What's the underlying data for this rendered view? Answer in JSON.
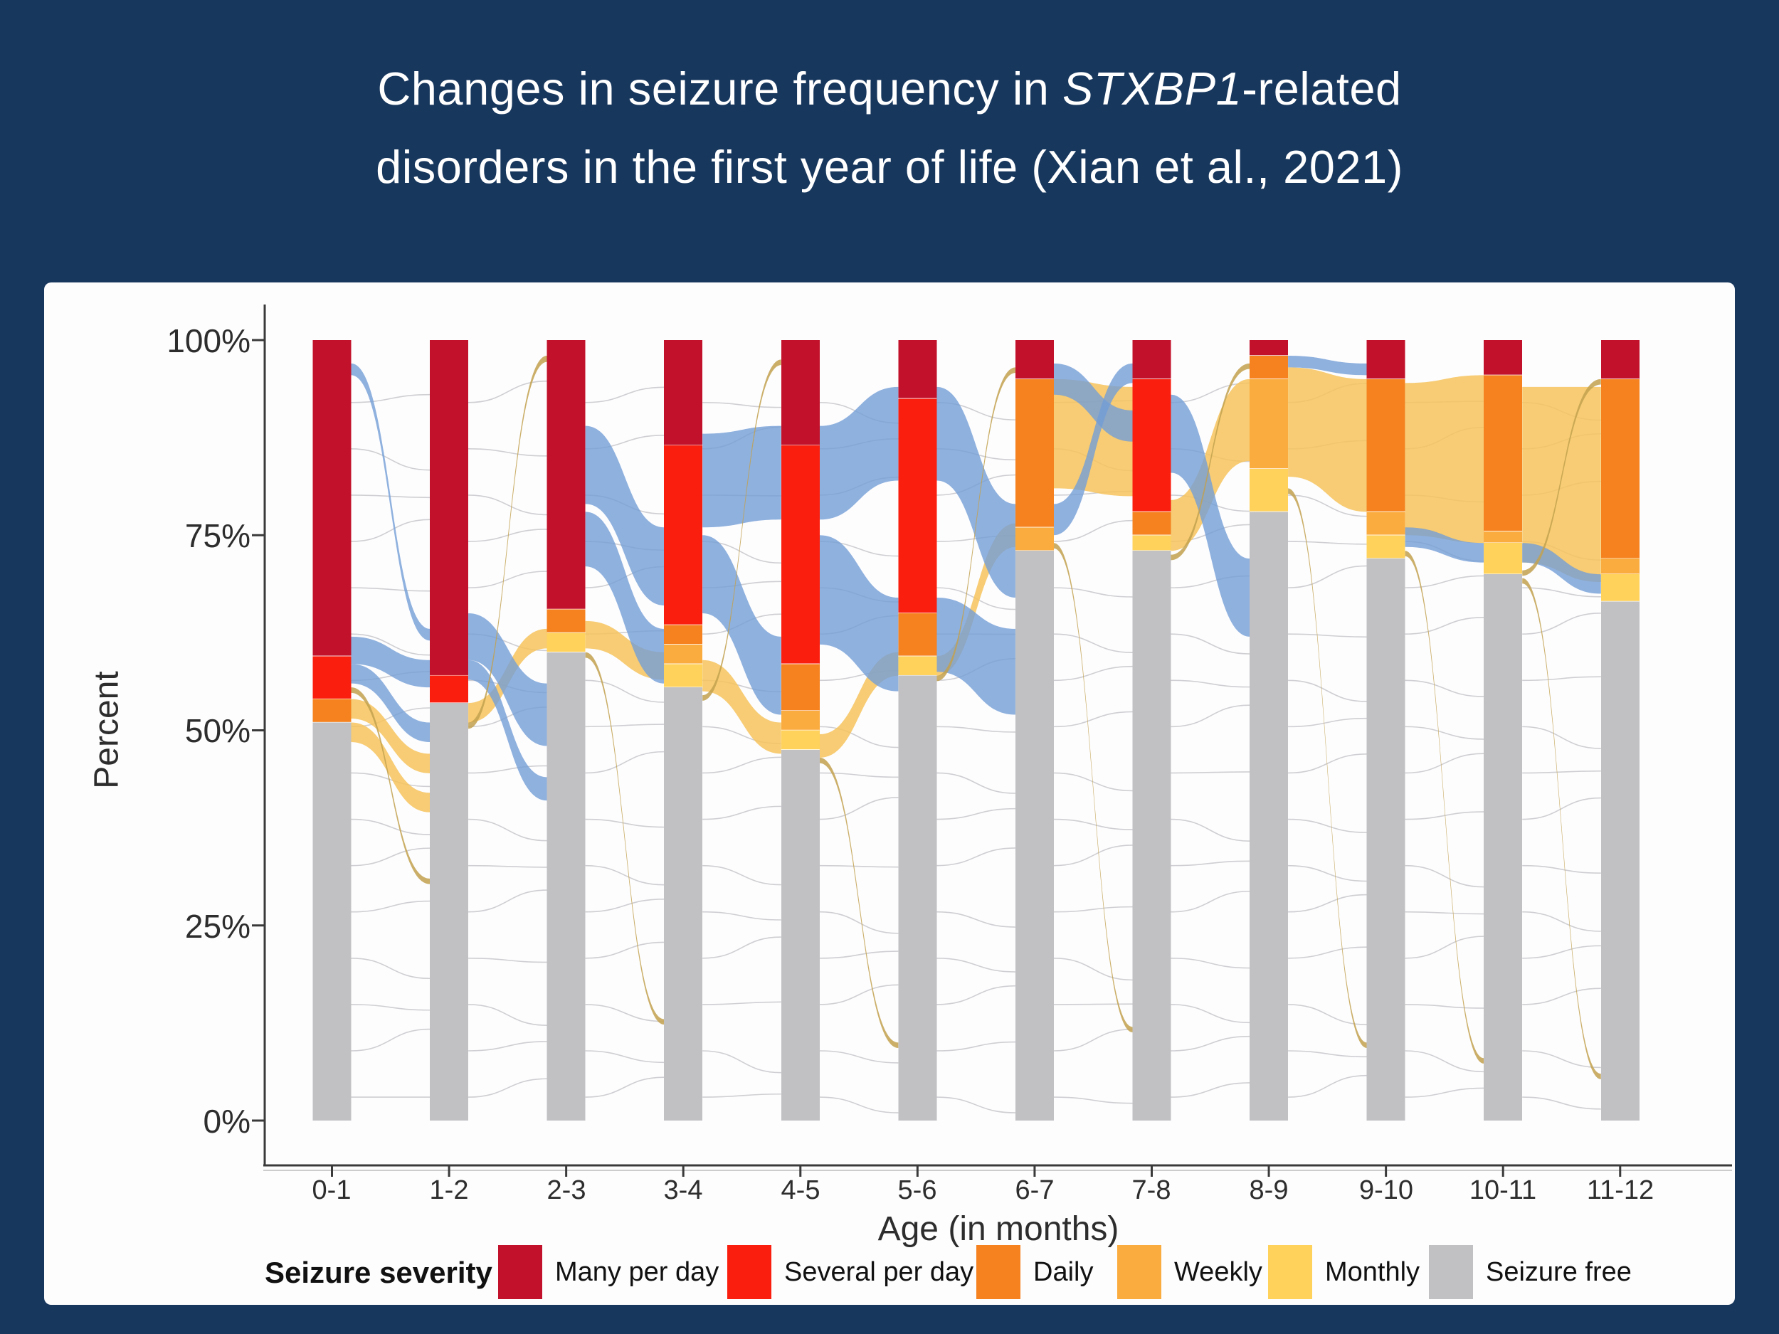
{
  "title": {
    "line1_pre": "Changes in seizure frequency in ",
    "line1_italic": "STXBP1",
    "line1_post": "-related",
    "line2": "disorders in the first year of life (Xian et al., 2021)"
  },
  "colors": {
    "many": "#C2122B",
    "several": "#FA1E0F",
    "daily": "#F5821F",
    "weekly": "#FBAC3E",
    "monthly": "#FFD25C",
    "free": "#C1C1C4",
    "flow_blue": "#739DD6",
    "flow_amber": "#F6C35C",
    "flow_tan": "#C2A14F",
    "flow_gray": "#A2A2A8",
    "background": "#18375D",
    "panel": "#FDFDFE",
    "axis": "#3A3A3A"
  },
  "legend": {
    "title": "Seizure severity",
    "items": [
      {
        "label": "Many per day",
        "color_key": "many"
      },
      {
        "label": "Several per day",
        "color_key": "several"
      },
      {
        "label": "Daily",
        "color_key": "daily"
      },
      {
        "label": "Weekly",
        "color_key": "weekly"
      },
      {
        "label": "Monthly",
        "color_key": "monthly"
      },
      {
        "label": "Seizure free",
        "color_key": "free"
      }
    ]
  },
  "chart_data": {
    "type": "alluvial_stacked_bar",
    "title": "Changes in seizure frequency in STXBP1-related disorders in the first year of life (Xian et al., 2021)",
    "xlabel": "Age (in months)",
    "ylabel": "Percent",
    "ylim": [
      0,
      100
    ],
    "grid": false,
    "legend_position": "bottom",
    "y_ticks": [
      "100%",
      "75%",
      "50%",
      "25%",
      "0%"
    ],
    "y_tick_values": [
      100,
      75,
      50,
      25,
      0
    ],
    "categories": [
      "0-1",
      "1-2",
      "2-3",
      "3-4",
      "4-5",
      "5-6",
      "6-7",
      "7-8",
      "8-9",
      "9-10",
      "10-11",
      "11-12"
    ],
    "series": [
      {
        "name": "Many per day",
        "color_key": "many",
        "values": [
          40.5,
          43,
          34.5,
          13.5,
          13.5,
          7.5,
          5,
          5,
          2,
          5,
          4.5,
          5
        ]
      },
      {
        "name": "Several per day",
        "color_key": "several",
        "values": [
          5.5,
          3.5,
          0,
          23,
          28,
          27.5,
          0,
          17,
          0,
          0,
          0,
          0
        ]
      },
      {
        "name": "Daily",
        "color_key": "daily",
        "values": [
          3,
          0,
          3,
          2.5,
          6,
          5.5,
          19,
          3,
          3,
          17,
          20,
          23
        ]
      },
      {
        "name": "Weekly",
        "color_key": "weekly",
        "values": [
          0,
          0,
          0,
          2.5,
          2.5,
          0,
          3,
          0,
          11.5,
          3,
          1.5,
          2
        ]
      },
      {
        "name": "Monthly",
        "color_key": "monthly",
        "values": [
          0,
          0,
          2.5,
          3,
          2.5,
          2.5,
          0,
          2,
          5.5,
          3,
          4,
          3.5
        ]
      },
      {
        "name": "Seizure free",
        "color_key": "free",
        "values": [
          51,
          53.5,
          60,
          55.5,
          47.5,
          57,
          73,
          73,
          78,
          72,
          70,
          66.5
        ]
      }
    ],
    "flows": {
      "note": "approximate patient-transition ribbons [fromBar,toBar,srcTop%,srcBottom%,dstTop%,dstBottom%]",
      "blue": [
        [
          0,
          1,
          97,
          95.5,
          63,
          61.5
        ],
        [
          0,
          1,
          62,
          58.5,
          59,
          55.5
        ],
        [
          0,
          1,
          58.5,
          56,
          51,
          48.5
        ],
        [
          1,
          2,
          65,
          59,
          56,
          48
        ],
        [
          1,
          2,
          59,
          56.5,
          44,
          41
        ],
        [
          2,
          3,
          89,
          79,
          76,
          66
        ],
        [
          2,
          3,
          78,
          71,
          63,
          56
        ],
        [
          3,
          4,
          88,
          76,
          89,
          77
        ],
        [
          3,
          4,
          75,
          65,
          62,
          52
        ],
        [
          4,
          5,
          89,
          77,
          94,
          82
        ],
        [
          4,
          5,
          75,
          61,
          67,
          55
        ],
        [
          5,
          6,
          94,
          82,
          79,
          67
        ],
        [
          5,
          6,
          67,
          57.5,
          63,
          52
        ],
        [
          6,
          7,
          97,
          93,
          91,
          87
        ],
        [
          6,
          7,
          79,
          75,
          97,
          94.5
        ],
        [
          7,
          8,
          93,
          83,
          72,
          62
        ],
        [
          8,
          9,
          98,
          96.5,
          97,
          95.5
        ],
        [
          9,
          10,
          76,
          73.5,
          74,
          71.5
        ],
        [
          10,
          11,
          74,
          71.5,
          70,
          67.5
        ]
      ],
      "amber": [
        [
          0,
          1,
          54,
          51.5,
          47,
          44.5
        ],
        [
          0,
          1,
          51,
          48.5,
          42,
          39.5
        ],
        [
          1,
          2,
          53.5,
          51,
          63,
          60.5
        ],
        [
          2,
          3,
          64,
          60.5,
          60,
          56.5
        ],
        [
          3,
          4,
          59,
          55,
          51,
          47
        ],
        [
          4,
          5,
          49.5,
          46.5,
          60,
          57
        ],
        [
          5,
          6,
          59.5,
          57,
          76.5,
          73.5
        ],
        [
          6,
          7,
          95,
          81,
          94,
          80
        ],
        [
          7,
          8,
          79.5,
          73,
          95,
          84.5
        ],
        [
          8,
          9,
          96.5,
          82.5,
          95,
          78
        ],
        [
          9,
          10,
          94.5,
          75,
          95.5,
          74
        ],
        [
          10,
          11,
          94,
          71.5,
          94,
          69
        ]
      ],
      "tan": [
        [
          0,
          1,
          55.5,
          54.8,
          31,
          30.3
        ],
        [
          1,
          2,
          51,
          50.2,
          98,
          97.2
        ],
        [
          2,
          3,
          60,
          59.3,
          13,
          12.3
        ],
        [
          3,
          4,
          54.5,
          53.8,
          97.5,
          96.8
        ],
        [
          4,
          5,
          46.5,
          45.8,
          10,
          9.3
        ],
        [
          5,
          6,
          57,
          56.3,
          96.5,
          95.8
        ],
        [
          6,
          7,
          74,
          73.3,
          12,
          11.3
        ],
        [
          7,
          8,
          72.5,
          71.8,
          97,
          96.3
        ],
        [
          8,
          9,
          81,
          80.3,
          10,
          9.3
        ],
        [
          9,
          10,
          73,
          72.3,
          8,
          7.3
        ],
        [
          10,
          11,
          70.5,
          69.8,
          95,
          94.3
        ],
        [
          10,
          11,
          69.5,
          68.8,
          6,
          5.3
        ]
      ],
      "gray_strands_per_gap": 16
    }
  }
}
